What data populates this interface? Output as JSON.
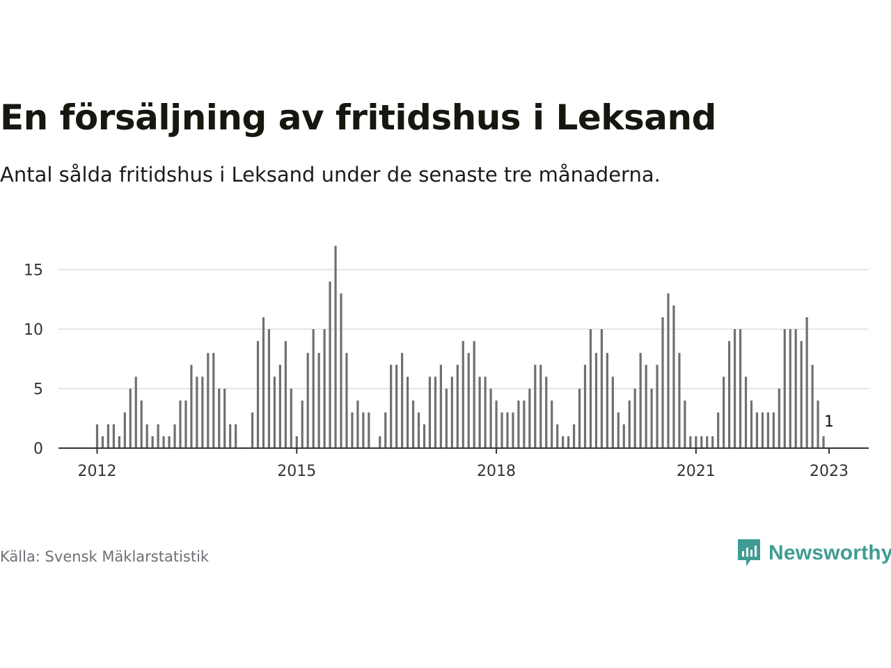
{
  "title": "En försäljning av fritidshus i Leksand",
  "subtitle": "Antal sålda fritidshus i Leksand under de senaste tre månaderna.",
  "source": "Källa: Svensk Mäklarstatistik",
  "brand": {
    "name": "Newsworthy",
    "icon": "newsworthy-logo-icon"
  },
  "colors": {
    "bar": "#6f6f73",
    "highlight": "#1aa39a",
    "grid": "#dddddd",
    "axis": "#333333"
  },
  "chart_data": {
    "type": "bar",
    "y_ticks": [
      0,
      5,
      10,
      15
    ],
    "ylim": [
      0,
      17
    ],
    "x_ticks": [
      "2012",
      "2015",
      "2018",
      "2021",
      "2023"
    ],
    "grid": true,
    "start_month": "2012-01",
    "end_month": "2023-01",
    "highlight": {
      "month": "2023-01",
      "value": 1,
      "label": "1"
    },
    "values": [
      2,
      1,
      2,
      2,
      1,
      3,
      5,
      6,
      4,
      2,
      1,
      2,
      1,
      1,
      2,
      4,
      4,
      7,
      6,
      6,
      8,
      8,
      5,
      5,
      2,
      2,
      null,
      null,
      3,
      9,
      11,
      10,
      6,
      7,
      9,
      5,
      1,
      4,
      8,
      10,
      8,
      10,
      14,
      17,
      13,
      8,
      3,
      4,
      3,
      3,
      null,
      1,
      3,
      7,
      7,
      8,
      6,
      4,
      3,
      2,
      6,
      6,
      7,
      5,
      6,
      7,
      9,
      8,
      9,
      6,
      6,
      5,
      4,
      3,
      3,
      3,
      4,
      4,
      5,
      7,
      7,
      6,
      4,
      2,
      1,
      1,
      2,
      5,
      7,
      10,
      8,
      10,
      8,
      6,
      3,
      2,
      4,
      5,
      8,
      7,
      5,
      7,
      11,
      13,
      12,
      8,
      4,
      1,
      1,
      1,
      1,
      1,
      3,
      6,
      9,
      10,
      10,
      6,
      4,
      3,
      3,
      3,
      3,
      5,
      10,
      10,
      10,
      9,
      11,
      7,
      4,
      1
    ]
  }
}
